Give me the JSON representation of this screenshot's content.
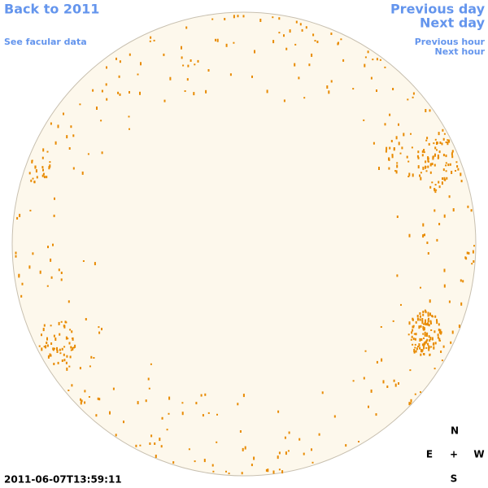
{
  "nav": {
    "back": "Back to 2011",
    "facular": "See facular data",
    "previous_day": "Previous day",
    "next_day": "Next day",
    "previous_hour": "Previous hour",
    "next_hour": "Next hour"
  },
  "timestamp": "2011-06-07T13:59:11",
  "compass": {
    "north": "N",
    "east": "E",
    "center": "+",
    "west": "W",
    "south": "S"
  }
}
